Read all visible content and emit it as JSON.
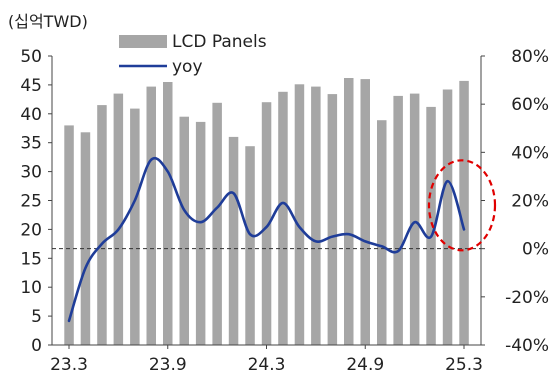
{
  "chart_data": {
    "type": "bar",
    "unit_label": "(십억TWD)",
    "legend": [
      {
        "name": "LCD Panels",
        "kind": "bar",
        "color": "#a6a6a6"
      },
      {
        "name": "yoy",
        "kind": "line",
        "color": "#1f3d99"
      }
    ],
    "left_axis": {
      "min": 0,
      "max": 50,
      "step": 5,
      "ticks": [
        "0",
        "5",
        "10",
        "15",
        "20",
        "25",
        "30",
        "35",
        "40",
        "45",
        "50"
      ]
    },
    "right_axis": {
      "min": -40,
      "max": 80,
      "step": 20,
      "ticks": [
        "-40%",
        "-20%",
        "0%",
        "20%",
        "40%",
        "60%",
        "80%"
      ]
    },
    "x_tick_labels": [
      "23.3",
      "23.9",
      "24.3",
      "24.9",
      "25.3"
    ],
    "x_tick_positions": [
      0,
      6,
      12,
      18,
      24
    ],
    "categories": [
      "23.3",
      "23.4",
      "23.5",
      "23.6",
      "23.7",
      "23.8",
      "23.9",
      "23.10",
      "23.11",
      "23.12",
      "24.1",
      "24.2",
      "24.3",
      "24.4",
      "24.5",
      "24.6",
      "24.7",
      "24.8",
      "24.9",
      "24.10",
      "24.11",
      "24.12",
      "25.1",
      "25.2",
      "25.3"
    ],
    "series": [
      {
        "name": "LCD Panels",
        "type": "bar",
        "axis": "left",
        "values": [
          38.0,
          36.8,
          41.5,
          43.5,
          40.9,
          44.7,
          45.5,
          39.5,
          38.6,
          41.9,
          36.0,
          34.4,
          42.0,
          43.8,
          45.1,
          44.7,
          43.4,
          46.2,
          46.0,
          38.9,
          43.1,
          43.5,
          41.2,
          44.2,
          45.7
        ]
      },
      {
        "name": "yoy",
        "type": "line",
        "axis": "right",
        "smooth": true,
        "values": [
          -30,
          -8,
          2,
          8,
          20,
          37,
          32,
          16,
          11,
          17,
          23,
          6,
          9,
          19,
          9,
          3,
          5,
          6,
          3,
          1,
          -1,
          11,
          5,
          28,
          8
        ]
      }
    ],
    "reference_line": {
      "axis": "right",
      "value": 0,
      "style": "dashed"
    },
    "highlight": {
      "shape": "ellipse",
      "style": "dashed",
      "color": "#e00000",
      "around_category": "25.3"
    }
  }
}
